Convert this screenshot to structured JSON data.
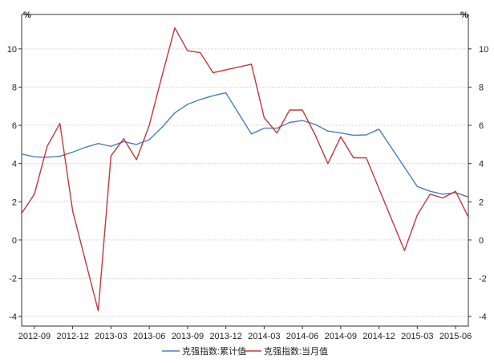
{
  "chart_data": {
    "type": "line",
    "x": [
      "2012-08",
      "2012-09",
      "2012-10",
      "2012-11",
      "2012-12",
      "2013-01",
      "2013-02",
      "2013-03",
      "2013-04",
      "2013-05",
      "2013-06",
      "2013-07",
      "2013-08",
      "2013-09",
      "2013-10",
      "2013-11",
      "2013-12",
      "2014-01",
      "2014-02",
      "2014-03",
      "2014-04",
      "2014-05",
      "2014-06",
      "2014-07",
      "2014-08",
      "2014-09",
      "2014-10",
      "2014-11",
      "2014-12",
      "2015-01",
      "2015-02",
      "2015-03",
      "2015-04",
      "2015-05",
      "2015-06",
      "2015-07"
    ],
    "x_tick_labels": [
      "2012-09",
      "2012-12",
      "2013-03",
      "2013-06",
      "2013-09",
      "2013-12",
      "2014-03",
      "2014-06",
      "2014-09",
      "2014-12",
      "2015-03",
      "2015-06"
    ],
    "y_unit_label": "%",
    "ylim": [
      -4.5,
      11.8
    ],
    "y_ticks": [
      -4,
      -2,
      0,
      2,
      4,
      6,
      8,
      10
    ],
    "grid": "horizontal dotted",
    "legend_position": "bottom",
    "series": [
      {
        "name": "克强指数:累计值",
        "color": "#4a7fc1",
        "values": [
          4.5,
          4.35,
          4.33,
          4.38,
          4.6,
          4.85,
          5.05,
          4.9,
          5.15,
          5.0,
          5.25,
          5.9,
          6.65,
          7.1,
          7.35,
          7.55,
          7.7,
          null,
          5.55,
          5.85,
          5.85,
          6.15,
          6.25,
          6.05,
          5.7,
          5.6,
          5.48,
          5.5,
          5.8,
          null,
          3.8,
          2.8,
          2.55,
          2.4,
          2.48,
          2.25
        ]
      },
      {
        "name": "克强指数:当月值",
        "color": "#c0393b",
        "values": [
          1.4,
          2.4,
          4.9,
          6.1,
          1.5,
          null,
          -3.7,
          4.4,
          5.3,
          4.2,
          6.0,
          8.6,
          11.1,
          9.9,
          9.8,
          8.75,
          null,
          null,
          9.2,
          6.4,
          5.6,
          6.8,
          6.8,
          5.5,
          4.0,
          5.4,
          4.3,
          4.3,
          null,
          null,
          -0.55,
          1.3,
          2.4,
          2.2,
          2.55,
          1.2
        ]
      }
    ]
  }
}
